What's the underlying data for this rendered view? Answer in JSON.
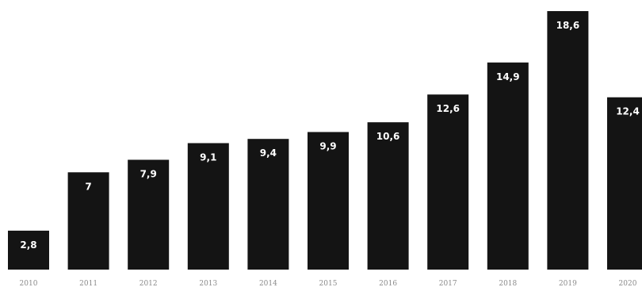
{
  "chart_data": {
    "type": "bar",
    "categories": [
      "2010",
      "2011",
      "2012",
      "2013",
      "2014",
      "2015",
      "2016",
      "2017",
      "2018",
      "2019",
      "2020"
    ],
    "values": [
      2.8,
      7,
      7.9,
      9.1,
      9.4,
      9.9,
      10.6,
      12.6,
      14.9,
      18.6,
      12.4
    ],
    "value_labels": [
      "2,8",
      "7",
      "7,9",
      "9,1",
      "9,4",
      "9,9",
      "10,6",
      "12,6",
      "14,9",
      "18,6",
      "12,4"
    ],
    "ylim": [
      0,
      18.6
    ],
    "grid": false,
    "legend": "none",
    "bar_color": "#141414",
    "label_color": "#ffffff"
  }
}
